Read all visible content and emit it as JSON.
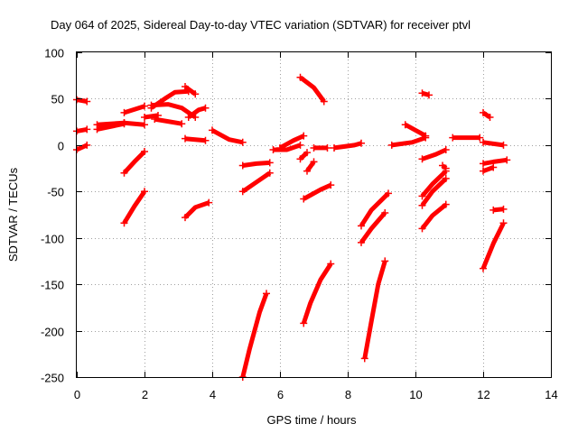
{
  "chart_data": {
    "type": "scatter",
    "title": "Day 064 of 2025, Sidereal Day-to-day VTEC variation (SDTVAR) for receiver ptvl",
    "xlabel": "GPS time / hours",
    "ylabel": "SDTVAR / TECUs",
    "xlim": [
      0,
      14
    ],
    "ylim": [
      -250,
      100
    ],
    "xticks": [
      "0",
      "2",
      "4",
      "6",
      "8",
      "10",
      "12",
      "14"
    ],
    "yticks": [
      "100",
      "50",
      "0",
      "-50",
      "-100",
      "-150",
      "-200",
      "-250"
    ],
    "grid": true,
    "marker": "plus",
    "color": "#ff0000",
    "series": [
      {
        "points": [
          [
            0,
            49
          ],
          [
            0.3,
            47
          ]
        ]
      },
      {
        "points": [
          [
            0,
            15
          ],
          [
            0.3,
            17
          ]
        ]
      },
      {
        "points": [
          [
            0,
            -5
          ],
          [
            0.3,
            0
          ]
        ]
      },
      {
        "points": [
          [
            0.6,
            17
          ],
          [
            1.4,
            23
          ]
        ]
      },
      {
        "points": [
          [
            0.6,
            22
          ],
          [
            1.4,
            24
          ]
        ]
      },
      {
        "points": [
          [
            1.4,
            35
          ],
          [
            2.0,
            42
          ]
        ]
      },
      {
        "points": [
          [
            1.4,
            24
          ],
          [
            2.0,
            22
          ]
        ]
      },
      {
        "points": [
          [
            2.0,
            30
          ],
          [
            2.4,
            32
          ]
        ]
      },
      {
        "points": [
          [
            1.4,
            -30
          ],
          [
            1.7,
            -18
          ],
          [
            2.0,
            -7
          ]
        ]
      },
      {
        "points": [
          [
            1.4,
            -84
          ],
          [
            1.7,
            -66
          ],
          [
            2.0,
            -50
          ]
        ]
      },
      {
        "points": [
          [
            2.2,
            40
          ],
          [
            2.6,
            50
          ],
          [
            2.9,
            57
          ],
          [
            3.3,
            58
          ]
        ]
      },
      {
        "points": [
          [
            3.2,
            63
          ],
          [
            3.5,
            55
          ]
        ]
      },
      {
        "points": [
          [
            2.2,
            43
          ],
          [
            2.7,
            44
          ],
          [
            3.1,
            40
          ],
          [
            3.5,
            30
          ]
        ]
      },
      {
        "points": [
          [
            2.3,
            28
          ],
          [
            3.1,
            23
          ]
        ]
      },
      {
        "points": [
          [
            3.3,
            30
          ],
          [
            3.6,
            38
          ],
          [
            3.8,
            40
          ]
        ]
      },
      {
        "points": [
          [
            3.2,
            7
          ],
          [
            3.8,
            5
          ]
        ]
      },
      {
        "points": [
          [
            3.2,
            -78
          ],
          [
            3.5,
            -67
          ],
          [
            3.9,
            -62
          ]
        ]
      },
      {
        "points": [
          [
            4.0,
            16
          ],
          [
            4.5,
            6
          ],
          [
            4.9,
            3
          ]
        ]
      },
      {
        "points": [
          [
            4.9,
            -22
          ],
          [
            5.3,
            -20
          ],
          [
            5.7,
            -19
          ]
        ]
      },
      {
        "points": [
          [
            4.9,
            -50
          ],
          [
            5.3,
            -40
          ],
          [
            5.7,
            -30
          ]
        ]
      },
      {
        "points": [
          [
            4.9,
            -250
          ],
          [
            5.1,
            -220
          ],
          [
            5.4,
            -180
          ],
          [
            5.6,
            -160
          ]
        ]
      },
      {
        "points": [
          [
            5.8,
            -5
          ],
          [
            6.2,
            -5
          ],
          [
            6.6,
            0
          ]
        ]
      },
      {
        "points": [
          [
            6.0,
            -3
          ],
          [
            6.4,
            5
          ],
          [
            6.7,
            10
          ]
        ]
      },
      {
        "points": [
          [
            6.6,
            73
          ],
          [
            7.0,
            62
          ],
          [
            7.3,
            47
          ]
        ]
      },
      {
        "points": [
          [
            6.8,
            -28
          ],
          [
            7.0,
            -18
          ]
        ]
      },
      {
        "points": [
          [
            6.6,
            -15
          ],
          [
            6.8,
            -8
          ]
        ]
      },
      {
        "points": [
          [
            6.7,
            -58
          ],
          [
            7.2,
            -48
          ],
          [
            7.5,
            -43
          ]
        ]
      },
      {
        "points": [
          [
            6.7,
            -192
          ],
          [
            6.9,
            -170
          ],
          [
            7.2,
            -145
          ],
          [
            7.5,
            -128
          ]
        ]
      },
      {
        "points": [
          [
            7.0,
            -3
          ],
          [
            7.4,
            -3
          ]
        ]
      },
      {
        "points": [
          [
            7.6,
            -3
          ],
          [
            8.2,
            0
          ],
          [
            8.4,
            2
          ]
        ]
      },
      {
        "points": [
          [
            8.4,
            -87
          ],
          [
            8.7,
            -70
          ],
          [
            9.2,
            -52
          ]
        ]
      },
      {
        "points": [
          [
            8.4,
            -105
          ],
          [
            8.7,
            -90
          ],
          [
            9.1,
            -73
          ]
        ]
      },
      {
        "points": [
          [
            8.5,
            -230
          ],
          [
            8.7,
            -190
          ],
          [
            8.9,
            -150
          ],
          [
            9.1,
            -125
          ]
        ]
      },
      {
        "points": [
          [
            9.3,
            0
          ],
          [
            9.9,
            3
          ],
          [
            10.3,
            8
          ]
        ]
      },
      {
        "points": [
          [
            9.7,
            22
          ],
          [
            10.3,
            10
          ]
        ]
      },
      {
        "points": [
          [
            10.2,
            56
          ],
          [
            10.4,
            54
          ]
        ]
      },
      {
        "points": [
          [
            10.2,
            -15
          ],
          [
            10.6,
            -10
          ],
          [
            10.9,
            -5
          ]
        ]
      },
      {
        "points": [
          [
            10.2,
            -55
          ],
          [
            10.5,
            -42
          ],
          [
            10.9,
            -28
          ]
        ]
      },
      {
        "points": [
          [
            10.2,
            -65
          ],
          [
            10.5,
            -50
          ],
          [
            10.9,
            -36
          ]
        ]
      },
      {
        "points": [
          [
            10.2,
            -90
          ],
          [
            10.5,
            -76
          ],
          [
            10.9,
            -64
          ]
        ]
      },
      {
        "points": [
          [
            10.8,
            -22
          ],
          [
            10.9,
            -25
          ]
        ]
      },
      {
        "points": [
          [
            11.1,
            8
          ],
          [
            11.9,
            8
          ]
        ]
      },
      {
        "points": [
          [
            12.0,
            3
          ],
          [
            12.6,
            0
          ]
        ]
      },
      {
        "points": [
          [
            12.0,
            35
          ],
          [
            12.2,
            30
          ]
        ]
      },
      {
        "points": [
          [
            12.0,
            -20
          ],
          [
            12.3,
            -18
          ],
          [
            12.7,
            -16
          ]
        ]
      },
      {
        "points": [
          [
            12.0,
            -28
          ],
          [
            12.3,
            -24
          ]
        ]
      },
      {
        "points": [
          [
            12.0,
            -133
          ],
          [
            12.3,
            -106
          ],
          [
            12.6,
            -84
          ]
        ]
      },
      {
        "points": [
          [
            12.3,
            -70
          ],
          [
            12.6,
            -69
          ]
        ]
      }
    ]
  }
}
